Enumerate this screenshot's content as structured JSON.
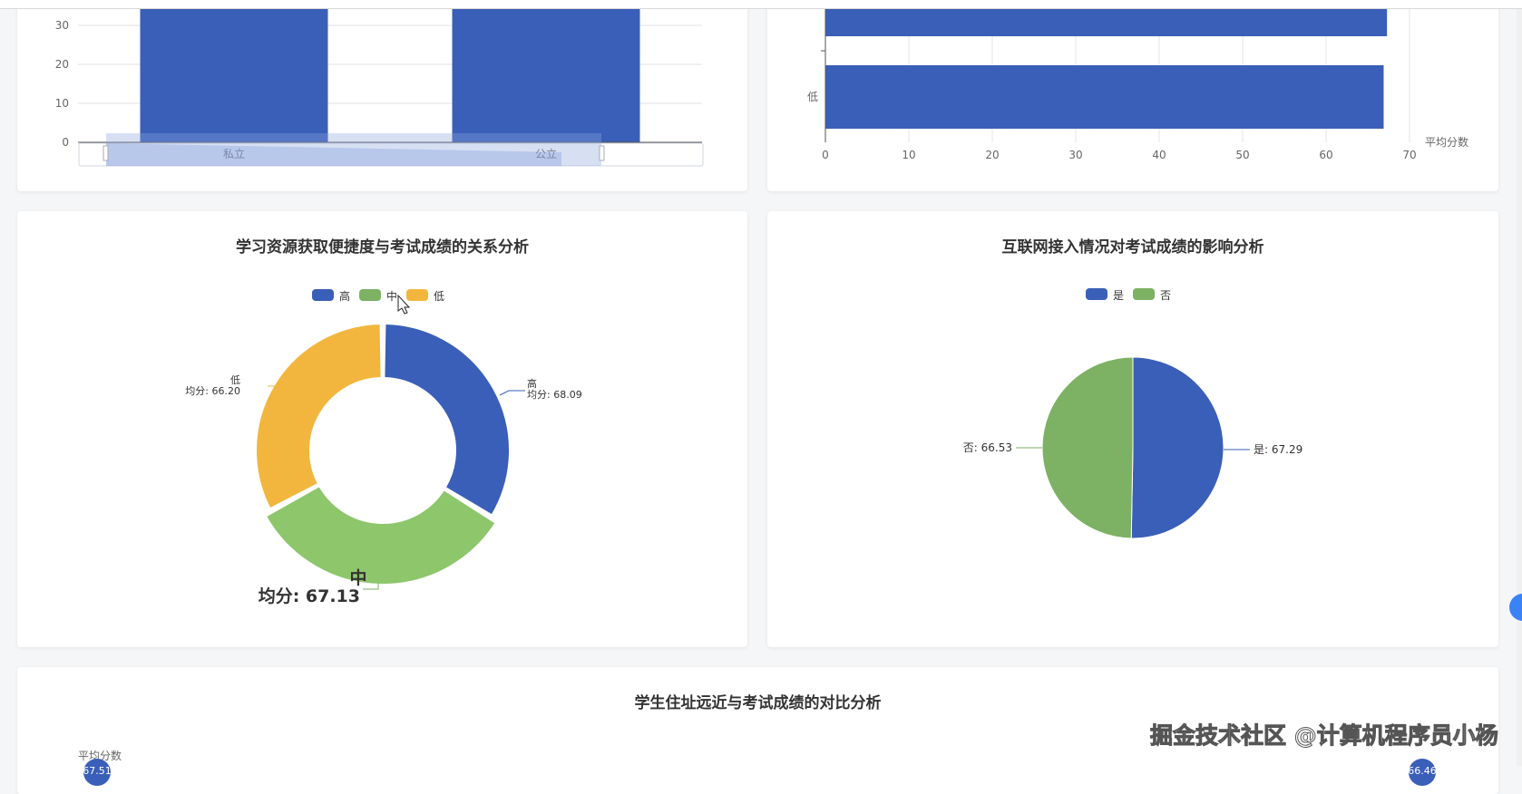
{
  "colors": {
    "blue": "#3a5fb8",
    "green": "#7db163",
    "green_light": "#8dc66b",
    "yellow": "#f2b63e"
  },
  "chart_data": [
    {
      "type": "bar",
      "categories": [
        "私立",
        "公立"
      ],
      "values": [
        67,
        67
      ],
      "yticks": [
        "0",
        "10",
        "20",
        "30"
      ],
      "ylim_visible": [
        0,
        30
      ],
      "grid": true,
      "has_datazoom_slider": true
    },
    {
      "type": "bar",
      "orientation": "horizontal",
      "categories": [
        "低",
        ""
      ],
      "values": [
        66.9,
        67.3
      ],
      "xticks": [
        "0",
        "10",
        "20",
        "30",
        "40",
        "50",
        "60",
        "70"
      ],
      "xlim": [
        0,
        70
      ],
      "xlabel": "平均分数",
      "grid": true
    },
    {
      "type": "pie",
      "donut": true,
      "title": "学习资源获取便捷度与考试成绩的关系分析",
      "legend": [
        "高",
        "中",
        "低"
      ],
      "legend_placement": "top",
      "categories": [
        "高",
        "中",
        "低"
      ],
      "values": [
        68.09,
        67.13,
        66.2
      ],
      "labels": [
        {
          "name": "高",
          "value": "均分: 68.09"
        },
        {
          "name": "中",
          "value": "均分: 67.13"
        },
        {
          "name": "低",
          "value": "均分: 66.20"
        }
      ],
      "highlighted": "中"
    },
    {
      "type": "pie",
      "title": "互联网接入情况对考试成绩的影响分析",
      "legend": [
        "是",
        "否"
      ],
      "legend_placement": "top",
      "categories": [
        "是",
        "否"
      ],
      "values": [
        67.29,
        66.53
      ],
      "labels": [
        "是: 67.29",
        "否: 66.53"
      ]
    },
    {
      "type": "scatter",
      "title": "学生住址远近与考试成绩的对比分析",
      "ylabel": "平均分数",
      "point_labels": [
        "67.51",
        "66.46"
      ]
    }
  ],
  "watermark": "掘金技术社区 @计算机程序员小杨"
}
